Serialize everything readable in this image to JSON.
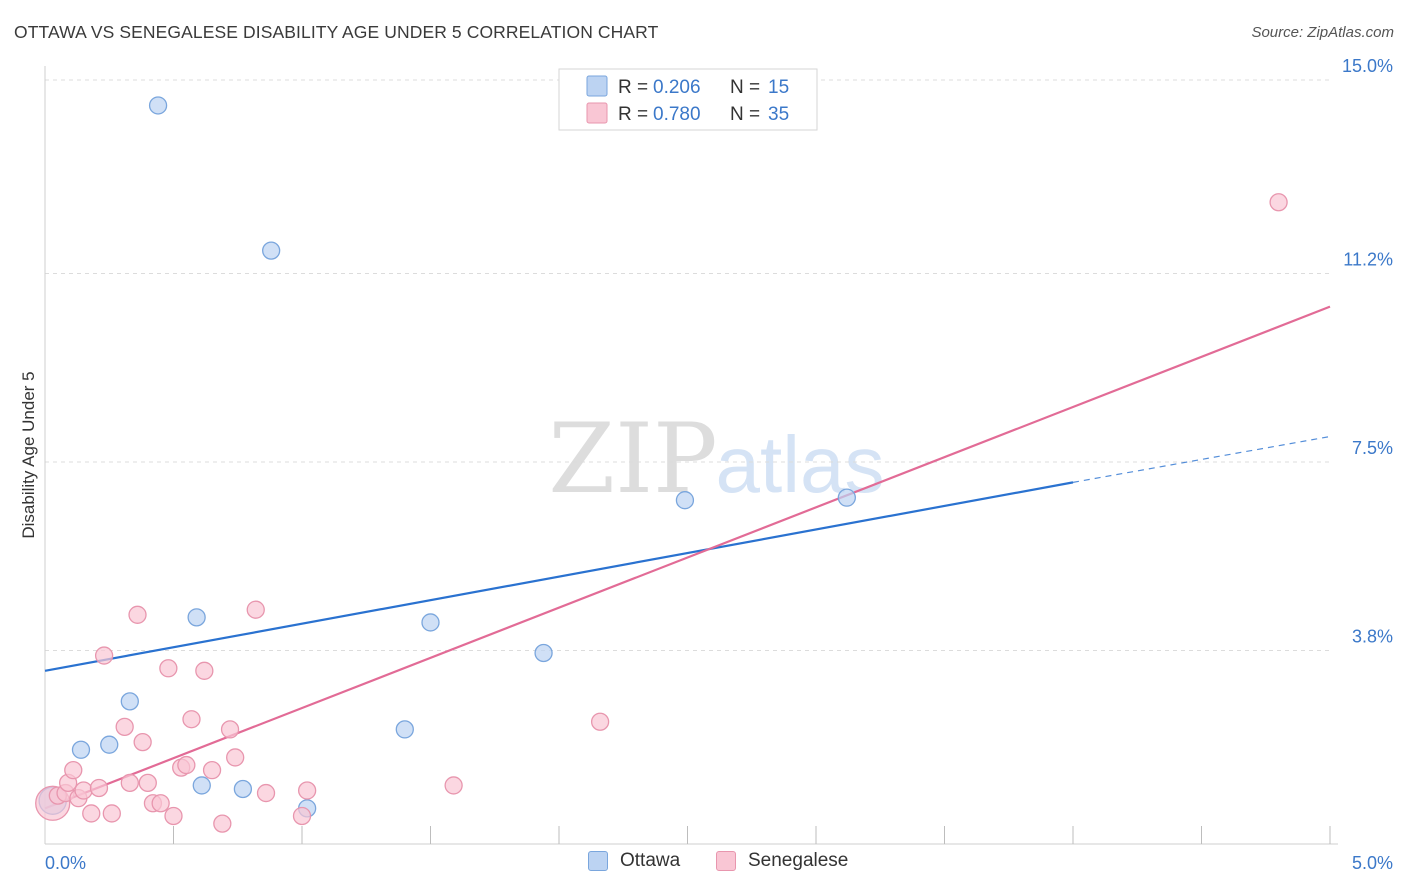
{
  "header": {
    "title": "OTTAWA VS SENEGALESE DISABILITY AGE UNDER 5 CORRELATION CHART",
    "source": "Source: ZipAtlas.com"
  },
  "watermark": {
    "zip": "ZIP",
    "atlas": "atlas"
  },
  "colors": {
    "ottawa_fill": "#bcd3f2",
    "ottawa_stroke": "#7aa6dd",
    "ottawa_line": "#2a72d0",
    "senegalese_fill": "#f9c6d4",
    "senegalese_stroke": "#e896ae",
    "senegalese_line": "#e26b96",
    "value_text": "#3b78c9",
    "grid": "#dcdcdc"
  },
  "legend": {
    "r_label": "R =",
    "n_label": "N =",
    "rows": [
      {
        "series": "Ottawa",
        "r": "0.206",
        "n": "15"
      },
      {
        "series": "Senegalese",
        "r": "0.780",
        "n": "35"
      }
    ]
  },
  "bottom_legend": [
    "Ottawa",
    "Senegalese"
  ],
  "chart_data": {
    "type": "scatter",
    "title": "OTTAWA VS SENEGALESE DISABILITY AGE UNDER 5 CORRELATION CHART",
    "xlabel": "",
    "ylabel": "Disability Age Under 5",
    "xlim": [
      0.0,
      5.0
    ],
    "ylim": [
      0.0,
      15.0
    ],
    "x_tick_labels": [
      "0.0%",
      "5.0%"
    ],
    "y_ticks": [
      3.8,
      7.5,
      11.2,
      15.0
    ],
    "y_tick_labels": [
      "3.8%",
      "7.5%",
      "11.2%",
      "15.0%"
    ],
    "grid": true,
    "legend_position": "top-center",
    "series": [
      {
        "name": "Ottawa",
        "r": 0.206,
        "n": 15,
        "points": [
          {
            "x": 0.03,
            "y": 0.85,
            "s": 1.6
          },
          {
            "x": 0.14,
            "y": 1.85
          },
          {
            "x": 0.25,
            "y": 1.95
          },
          {
            "x": 0.33,
            "y": 2.8
          },
          {
            "x": 0.44,
            "y": 14.5
          },
          {
            "x": 0.59,
            "y": 4.45
          },
          {
            "x": 0.61,
            "y": 1.15
          },
          {
            "x": 0.77,
            "y": 1.08
          },
          {
            "x": 0.88,
            "y": 11.65
          },
          {
            "x": 1.02,
            "y": 0.7
          },
          {
            "x": 1.4,
            "y": 2.25
          },
          {
            "x": 1.5,
            "y": 4.35
          },
          {
            "x": 1.94,
            "y": 3.75
          },
          {
            "x": 2.49,
            "y": 6.75
          },
          {
            "x": 3.12,
            "y": 6.8
          }
        ],
        "trend": {
          "x0": 0.0,
          "y0": 3.4,
          "x1": 4.0,
          "y1": 7.1,
          "dash_x1": 5.0,
          "dash_y1": 8.0
        }
      },
      {
        "name": "Senegalese",
        "r": 0.78,
        "n": 35,
        "points": [
          {
            "x": 0.03,
            "y": 0.8,
            "s": 2.0
          },
          {
            "x": 0.05,
            "y": 0.95
          },
          {
            "x": 0.08,
            "y": 1.0
          },
          {
            "x": 0.09,
            "y": 1.2
          },
          {
            "x": 0.11,
            "y": 1.45
          },
          {
            "x": 0.13,
            "y": 0.9
          },
          {
            "x": 0.15,
            "y": 1.05
          },
          {
            "x": 0.18,
            "y": 0.6
          },
          {
            "x": 0.21,
            "y": 1.1
          },
          {
            "x": 0.23,
            "y": 3.7
          },
          {
            "x": 0.26,
            "y": 0.6
          },
          {
            "x": 0.31,
            "y": 2.3
          },
          {
            "x": 0.33,
            "y": 1.2
          },
          {
            "x": 0.36,
            "y": 4.5
          },
          {
            "x": 0.38,
            "y": 2.0
          },
          {
            "x": 0.4,
            "y": 1.2
          },
          {
            "x": 0.42,
            "y": 0.8
          },
          {
            "x": 0.45,
            "y": 0.8
          },
          {
            "x": 0.48,
            "y": 3.45
          },
          {
            "x": 0.5,
            "y": 0.55
          },
          {
            "x": 0.53,
            "y": 1.5
          },
          {
            "x": 0.55,
            "y": 1.55
          },
          {
            "x": 0.57,
            "y": 2.45
          },
          {
            "x": 0.62,
            "y": 3.4
          },
          {
            "x": 0.65,
            "y": 1.45
          },
          {
            "x": 0.69,
            "y": 0.4
          },
          {
            "x": 0.72,
            "y": 2.25
          },
          {
            "x": 0.74,
            "y": 1.7
          },
          {
            "x": 0.82,
            "y": 4.6
          },
          {
            "x": 0.86,
            "y": 1.0
          },
          {
            "x": 1.0,
            "y": 0.55
          },
          {
            "x": 1.02,
            "y": 1.05
          },
          {
            "x": 1.59,
            "y": 1.15
          },
          {
            "x": 2.16,
            "y": 2.4
          },
          {
            "x": 4.8,
            "y": 12.6
          }
        ],
        "trend": {
          "x0": 0.0,
          "y0": 0.7,
          "x1": 5.0,
          "y1": 10.55
        }
      }
    ]
  }
}
